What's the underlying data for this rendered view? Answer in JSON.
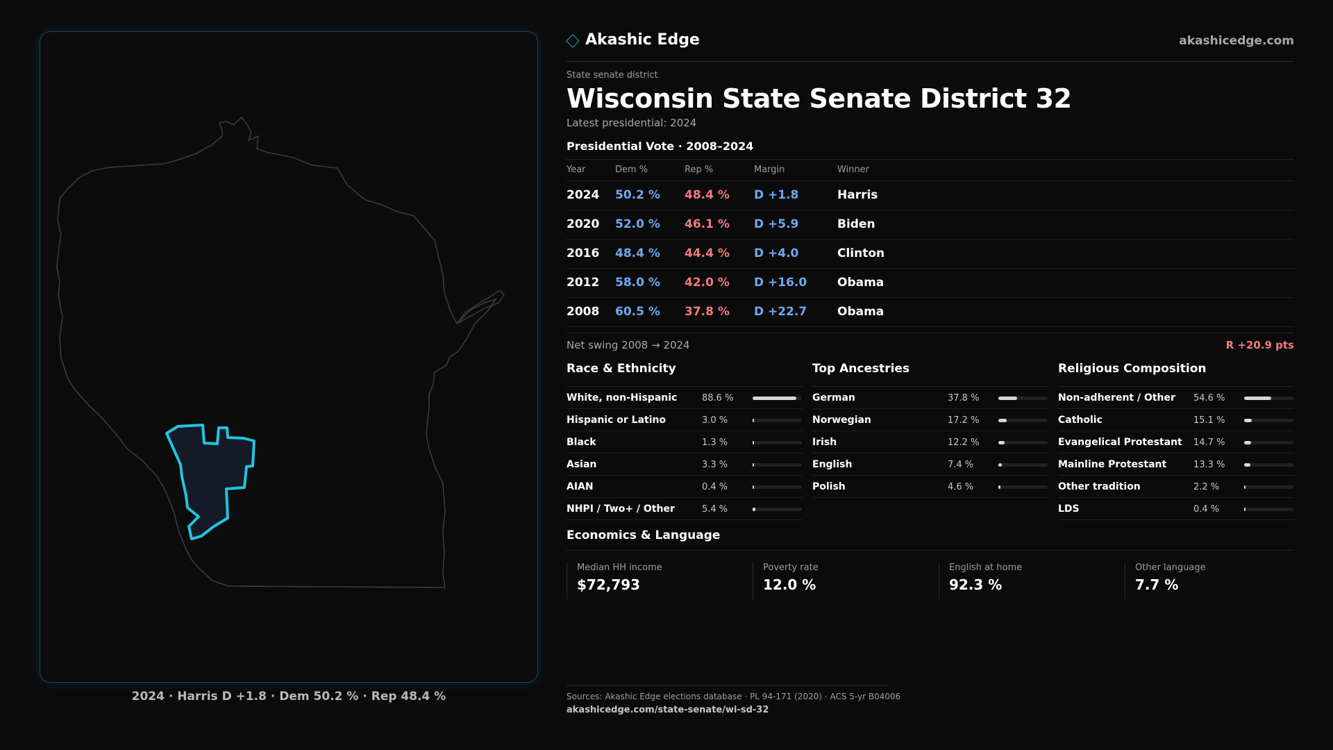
{
  "brand": {
    "name": "Akashic Edge",
    "url": "akashicedge.com",
    "icon": "diamond-icon",
    "accent": "#2aa7b8"
  },
  "header": {
    "kicker": "State senate district",
    "title": "Wisconsin State Senate District 32",
    "latest": "Latest presidential: 2024"
  },
  "vote": {
    "heading": "Presidential Vote · 2008–2024",
    "columns": [
      "Year",
      "Dem %",
      "Rep %",
      "Margin",
      "Winner"
    ],
    "rows": [
      {
        "year": "2024",
        "dem": "50.2 %",
        "rep": "48.4 %",
        "margin": "D +1.8",
        "winner": "Harris"
      },
      {
        "year": "2020",
        "dem": "52.0 %",
        "rep": "46.1 %",
        "margin": "D +5.9",
        "winner": "Biden"
      },
      {
        "year": "2016",
        "dem": "48.4 %",
        "rep": "44.4 %",
        "margin": "D +4.0",
        "winner": "Clinton"
      },
      {
        "year": "2012",
        "dem": "58.0 %",
        "rep": "42.0 %",
        "margin": "D +16.0",
        "winner": "Obama"
      },
      {
        "year": "2008",
        "dem": "60.5 %",
        "rep": "37.8 %",
        "margin": "D +22.7",
        "winner": "Obama"
      }
    ],
    "swing_label": "Net swing 2008 → 2024",
    "swing_value": "R +20.9 pts",
    "colors": {
      "dem": "#6fa8f0",
      "rep": "#f07b78"
    }
  },
  "race": {
    "title": "Race & Ethnicity",
    "rows": [
      {
        "label": "White, non-Hispanic",
        "value": "88.6 %",
        "pct": 88.6
      },
      {
        "label": "Hispanic or Latino",
        "value": "3.0 %",
        "pct": 3.0
      },
      {
        "label": "Black",
        "value": "1.3 %",
        "pct": 1.3
      },
      {
        "label": "Asian",
        "value": "3.3 %",
        "pct": 3.3
      },
      {
        "label": "AIAN",
        "value": "0.4 %",
        "pct": 0.4
      },
      {
        "label": "NHPI / Two+ / Other",
        "value": "5.4 %",
        "pct": 5.4
      }
    ]
  },
  "ancestry": {
    "title": "Top Ancestries",
    "rows": [
      {
        "label": "German",
        "value": "37.8 %",
        "pct": 37.8
      },
      {
        "label": "Norwegian",
        "value": "17.2 %",
        "pct": 17.2
      },
      {
        "label": "Irish",
        "value": "12.2 %",
        "pct": 12.2
      },
      {
        "label": "English",
        "value": "7.4 %",
        "pct": 7.4
      },
      {
        "label": "Polish",
        "value": "4.6 %",
        "pct": 4.6
      }
    ]
  },
  "religion": {
    "title": "Religious Composition",
    "rows": [
      {
        "label": "Non-adherent / Other",
        "value": "54.6 %",
        "pct": 54.6
      },
      {
        "label": "Catholic",
        "value": "15.1 %",
        "pct": 15.1
      },
      {
        "label": "Evangelical Protestant",
        "value": "14.7 %",
        "pct": 14.7
      },
      {
        "label": "Mainline Protestant",
        "value": "13.3 %",
        "pct": 13.3
      },
      {
        "label": "Other tradition",
        "value": "2.2 %",
        "pct": 2.2
      },
      {
        "label": "LDS",
        "value": "0.4 %",
        "pct": 0.4
      }
    ]
  },
  "economics": {
    "title": "Economics & Language",
    "items": [
      {
        "label": "Median HH income",
        "value": "$72,793"
      },
      {
        "label": "Poverty rate",
        "value": "12.0 %"
      },
      {
        "label": "English at home",
        "value": "92.3 %"
      },
      {
        "label": "Other language",
        "value": "7.7 %"
      }
    ]
  },
  "map": {
    "caption": "2024 · Harris D +1.8 · Dem 50.2 % · Rep 48.4 %",
    "district_color": "#20c4e0"
  },
  "sources": {
    "line1": "Sources: Akashic Edge elections database · PL 94-171 (2020) · ACS 5-yr B04006",
    "line2": "akashicedge.com/state-senate/wi-sd-32"
  }
}
